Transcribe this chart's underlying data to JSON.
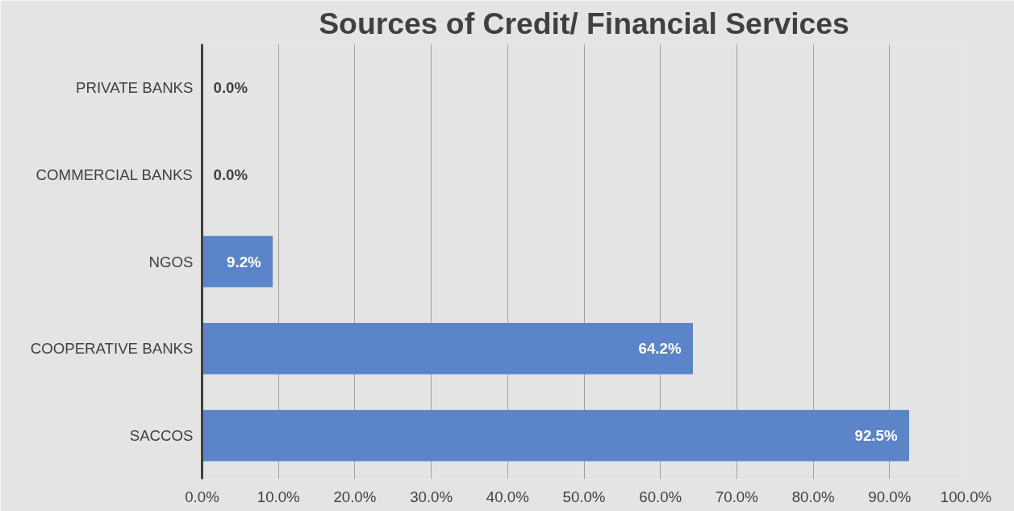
{
  "chart_data": {
    "type": "bar",
    "orientation": "horizontal",
    "title": "Sources of Credit/ Financial Services",
    "categories": [
      "PRIVATE BANKS",
      "COMMERCIAL BANKS",
      "NGOS",
      "COOPERATIVE BANKS",
      "SACCOS"
    ],
    "values": [
      0,
      0,
      9.2,
      64.2,
      92.5
    ],
    "value_labels": [
      "0.0%",
      "0.0%",
      "9.2%",
      "64.2%",
      "92.5%"
    ],
    "color": "#5b84c9",
    "xlim": [
      0,
      100
    ],
    "xticks": [
      {
        "value": 0,
        "label": "0.0%"
      },
      {
        "value": 10,
        "label": "10.0%"
      },
      {
        "value": 20,
        "label": "20.0%"
      },
      {
        "value": 30,
        "label": "30.0%"
      },
      {
        "value": 40,
        "label": "40.0%"
      },
      {
        "value": 50,
        "label": "50.0%"
      },
      {
        "value": 60,
        "label": "60.0%"
      },
      {
        "value": 70,
        "label": "70.0%"
      },
      {
        "value": 80,
        "label": "80.0%"
      },
      {
        "value": 90,
        "label": "90.0%"
      },
      {
        "value": 100,
        "label": "100.0%"
      }
    ],
    "grid": "x"
  }
}
